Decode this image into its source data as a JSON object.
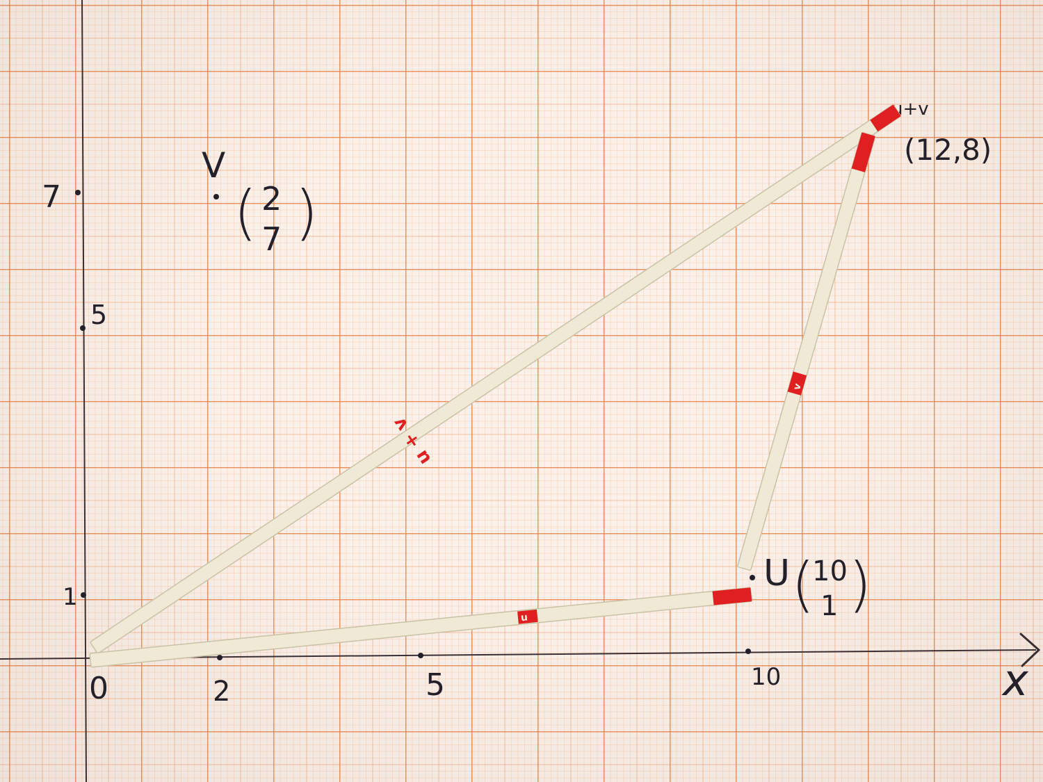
{
  "axes": {
    "x_label": "x",
    "x_ticks": [
      "0",
      "2",
      "5",
      "10"
    ],
    "y_ticks": [
      "1",
      "5",
      "7"
    ]
  },
  "labels": {
    "v_name": "V",
    "v_top": "2",
    "v_bottom": "7",
    "u_name": "U",
    "u_top": "10",
    "u_bottom": "1",
    "sum_name": "u+v",
    "sum_point": "(12,8)"
  },
  "sticks": {
    "sum_stick_mark": "u + v",
    "u_stick_mark": "u",
    "v_stick_mark": "v"
  },
  "colors": {
    "grid": "#e8824a",
    "paper": "#fbf1ea",
    "stick": "#efe9d6",
    "mark": "#e02020",
    "ink": "#23202a"
  }
}
